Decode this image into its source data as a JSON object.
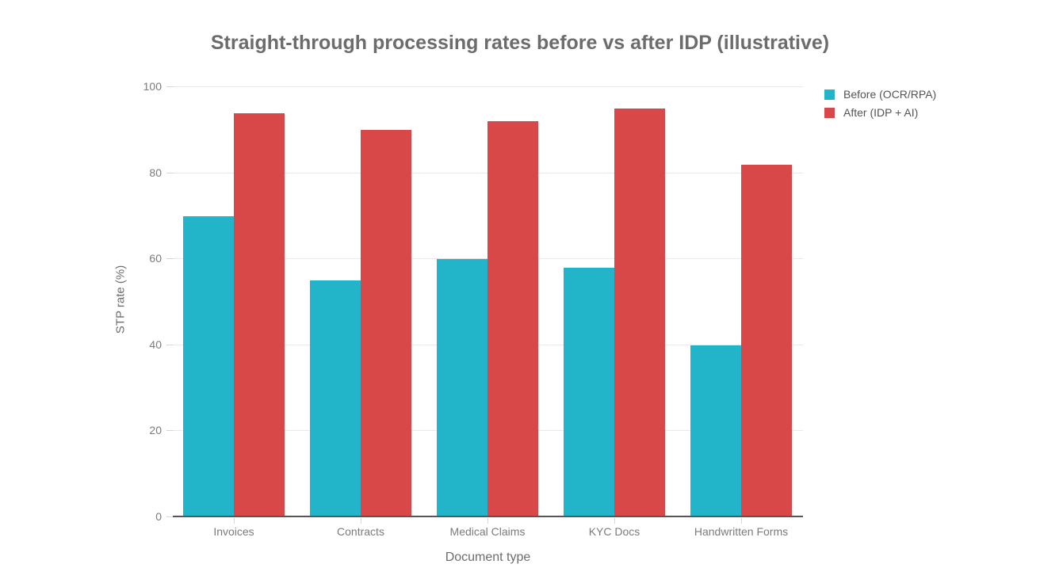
{
  "chart_data": {
    "type": "bar",
    "title": "Straight-through processing rates before vs after IDP (illustrative)",
    "categories": [
      "Invoices",
      "Contracts",
      "Medical Claims",
      "KYC Docs",
      "Handwritten Forms"
    ],
    "series": [
      {
        "name": "Before (OCR/RPA)",
        "color": "#22b5c9",
        "values": [
          70,
          55,
          60,
          58,
          40
        ]
      },
      {
        "name": "After (IDP + AI)",
        "color": "#d84848",
        "values": [
          94,
          90,
          92,
          95,
          82
        ]
      }
    ],
    "xlabel": "Document type",
    "ylabel": "STP rate (%)",
    "ylim": [
      0,
      100
    ],
    "yticks": [
      0,
      20,
      40,
      60,
      80,
      100
    ],
    "grid": true,
    "legend_position": "top-right",
    "background_color": "#ffffff",
    "gridline_color": "#e9e9e9",
    "axis_line_color": "#565656",
    "text_color": "#6c6c6c"
  }
}
